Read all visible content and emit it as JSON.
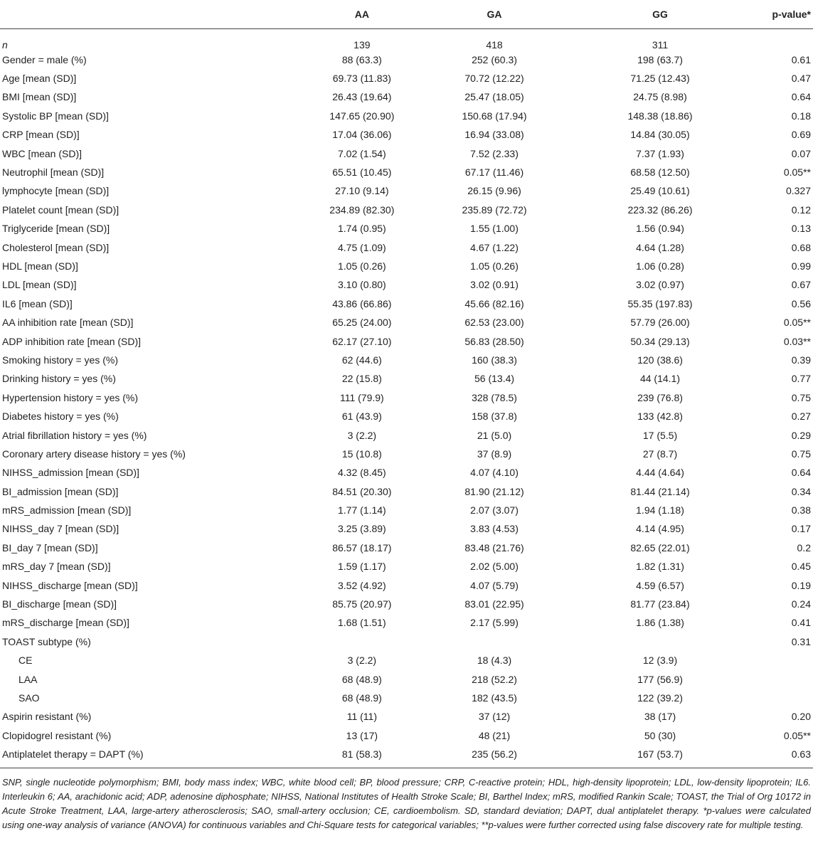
{
  "table": {
    "header": [
      "AA",
      "GA",
      "GG",
      "p-value*"
    ],
    "rows": [
      [
        "n",
        "139",
        "418",
        "311",
        null
      ],
      [
        "Gender = male (%)",
        "88 (63.3)",
        "252 (60.3)",
        "198 (63.7)",
        "0.61"
      ],
      [
        "Age [mean (SD)]",
        "69.73 (11.83)",
        "70.72 (12.22)",
        "71.25 (12.43)",
        "0.47"
      ],
      [
        "BMI [mean (SD)]",
        "26.43 (19.64)",
        "25.47 (18.05)",
        "24.75 (8.98)",
        "0.64"
      ],
      [
        "Systolic BP [mean (SD)]",
        "147.65 (20.90)",
        "150.68 (17.94)",
        "148.38 (18.86)",
        "0.18"
      ],
      [
        "CRP [mean (SD)]",
        "17.04 (36.06)",
        "16.94 (33.08)",
        "14.84 (30.05)",
        "0.69"
      ],
      [
        "WBC [mean (SD)]",
        "7.02 (1.54)",
        "7.52 (2.33)",
        "7.37 (1.93)",
        "0.07"
      ],
      [
        "Neutrophil [mean (SD)]",
        "65.51 (10.45)",
        "67.17 (11.46)",
        "68.58 (12.50)",
        "0.05**"
      ],
      [
        "lymphocyte [mean (SD)]",
        "27.10 (9.14)",
        "26.15 (9.96)",
        "25.49 (10.61)",
        "0.327"
      ],
      [
        "Platelet count [mean (SD)]",
        "234.89 (82.30)",
        "235.89 (72.72)",
        "223.32 (86.26)",
        "0.12"
      ],
      [
        "Triglyceride [mean (SD)]",
        "1.74 (0.95)",
        "1.55 (1.00)",
        "1.56 (0.94)",
        "0.13"
      ],
      [
        "Cholesterol [mean (SD)]",
        "4.75 (1.09)",
        "4.67 (1.22)",
        "4.64 (1.28)",
        "0.68"
      ],
      [
        "HDL [mean (SD)]",
        "1.05 (0.26)",
        "1.05 (0.26)",
        "1.06 (0.28)",
        "0.99"
      ],
      [
        "LDL [mean (SD)]",
        "3.10 (0.80)",
        "3.02 (0.91)",
        "3.02 (0.97)",
        "0.67"
      ],
      [
        "IL6 [mean (SD)]",
        "43.86 (66.86)",
        "45.66 (82.16)",
        "55.35 (197.83)",
        "0.56"
      ],
      [
        "AA inhibition rate [mean (SD)]",
        "65.25 (24.00)",
        "62.53 (23.00)",
        "57.79 (26.00)",
        "0.05**"
      ],
      [
        "ADP inhibition rate [mean (SD)]",
        "62.17 (27.10)",
        "56.83 (28.50)",
        "50.34 (29.13)",
        "0.03**"
      ],
      [
        "Smoking history = yes (%)",
        "62 (44.6)",
        "160 (38.3)",
        "120 (38.6)",
        "0.39"
      ],
      [
        "Drinking history = yes (%)",
        "22 (15.8)",
        "56 (13.4)",
        "44 (14.1)",
        "0.77"
      ],
      [
        "Hypertension history = yes (%)",
        "111 (79.9)",
        "328 (78.5)",
        "239 (76.8)",
        "0.75"
      ],
      [
        "Diabetes history = yes (%)",
        "61 (43.9)",
        "158 (37.8)",
        "133 (42.8)",
        "0.27"
      ],
      [
        "Atrial fibrillation history = yes (%)",
        "3 (2.2)",
        "21 (5.0)",
        "17 (5.5)",
        "0.29"
      ],
      [
        "Coronary artery disease history = yes (%)",
        "15 (10.8)",
        "37 (8.9)",
        "27 (8.7)",
        "0.75"
      ],
      [
        "NIHSS_admission [mean (SD)]",
        "4.32 (8.45)",
        "4.07 (4.10)",
        "4.44 (4.64)",
        "0.64"
      ],
      [
        "BI_admission [mean (SD)]",
        "84.51 (20.30)",
        "81.90 (21.12)",
        "81.44 (21.14)",
        "0.34"
      ],
      [
        "mRS_admission [mean (SD)]",
        "1.77 (1.14)",
        "2.07 (3.07)",
        "1.94 (1.18)",
        "0.38"
      ],
      [
        "NIHSS_day 7 [mean (SD)]",
        "3.25 (3.89)",
        "3.83 (4.53)",
        "4.14 (4.95)",
        "0.17"
      ],
      [
        "BI_day 7 [mean (SD)]",
        "86.57 (18.17)",
        "83.48 (21.76)",
        "82.65 (22.01)",
        "0.2"
      ],
      [
        "mRS_day 7 [mean (SD)]",
        "1.59 (1.17)",
        "2.02 (5.00)",
        "1.82 (1.31)",
        "0.45"
      ],
      [
        "NIHSS_discharge [mean (SD)]",
        "3.52 (4.92)",
        "4.07 (5.79)",
        "4.59 (6.57)",
        "0.19"
      ],
      [
        "BI_discharge [mean (SD)]",
        "85.75 (20.97)",
        "83.01 (22.95)",
        "81.77 (23.84)",
        "0.24"
      ],
      [
        "mRS_discharge [mean (SD)]",
        "1.68 (1.51)",
        "2.17 (5.99)",
        "1.86 (1.38)",
        "0.41"
      ],
      [
        "TOAST subtype (%)",
        null,
        null,
        null,
        "0.31"
      ],
      [
        "CE",
        "3 (2.2)",
        "18 (4.3)",
        "12 (3.9)",
        null
      ],
      [
        "LAA",
        "68 (48.9)",
        "218 (52.2)",
        "177 (56.9)",
        null
      ],
      [
        "SAO",
        "68 (48.9)",
        "182 (43.5)",
        "122 (39.2)",
        null
      ],
      [
        "Aspirin resistant (%)",
        "11 (11)",
        "37 (12)",
        "38 (17)",
        "0.20"
      ],
      [
        "Clopidogrel resistant (%)",
        "13 (17)",
        "48 (21)",
        "50 (30)",
        "0.05**"
      ],
      [
        "Antiplatelet therapy = DAPT (%)",
        "81 (58.3)",
        "235 (56.2)",
        "167 (53.7)",
        "0.63"
      ]
    ]
  },
  "footnote": "SNP, single nucleotide polymorphism; BMI, body mass index; WBC, white blood cell; BP, blood pressure; CRP, C-reactive protein; HDL, high-density lipoprotein; LDL, low-density lipoprotein; IL6. Interleukin 6; AA, arachidonic acid; ADP, adenosine diphosphate; NIHSS, National Institutes of Health Stroke Scale; BI, Barthel Index; mRS, modified Rankin Scale; TOAST, the Trial of Org 10172 in Acute Stroke Treatment, LAA, large-artery atherosclerosis; SAO, small-artery occlusion; CE, cardioembolism. SD, standard deviation; DAPT, dual antiplatelet therapy. *p-values were calculated using one-way analysis of variance (ANOVA) for continuous variables and Chi-Square tests for categorical variables; **p-values were further corrected using false discovery rate for multiple testing."
}
